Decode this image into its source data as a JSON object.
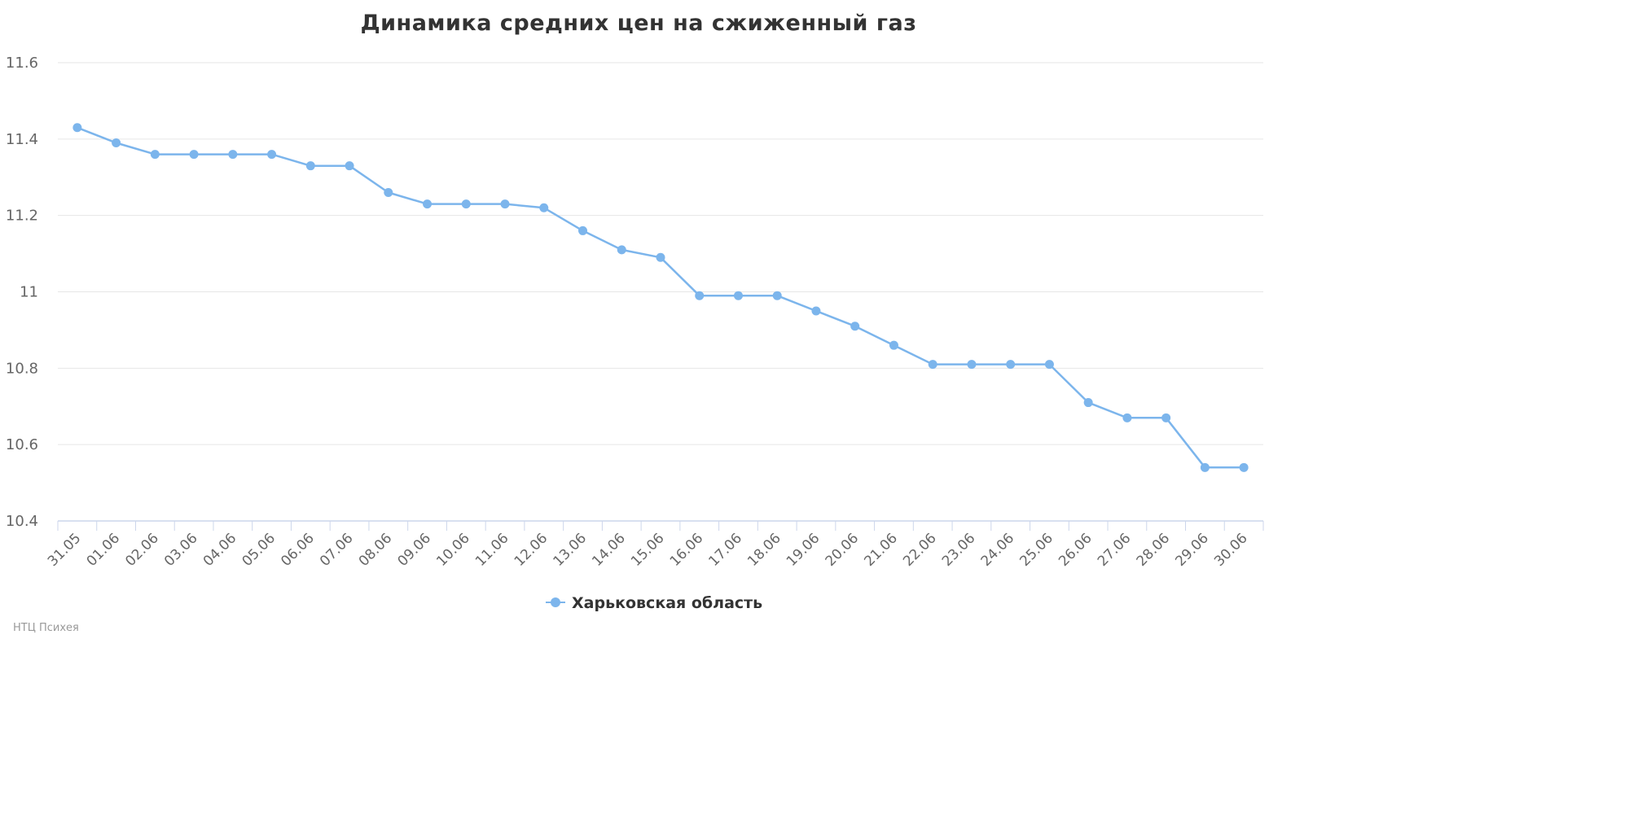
{
  "chart_data": {
    "type": "line",
    "title": "Динамика средних цен на сжиженный газ",
    "categories": [
      "31.05",
      "01.06",
      "02.06",
      "03.06",
      "04.06",
      "05.06",
      "06.06",
      "07.06",
      "08.06",
      "09.06",
      "10.06",
      "11.06",
      "12.06",
      "13.06",
      "14.06",
      "15.06",
      "16.06",
      "17.06",
      "18.06",
      "19.06",
      "20.06",
      "21.06",
      "22.06",
      "23.06",
      "24.06",
      "25.06",
      "26.06",
      "27.06",
      "28.06",
      "29.06",
      "30.06"
    ],
    "series": [
      {
        "name": "Харьковская область",
        "color": "#7cb5ec",
        "values": [
          11.43,
          11.39,
          11.36,
          11.36,
          11.36,
          11.36,
          11.33,
          11.33,
          11.26,
          11.23,
          11.23,
          11.23,
          11.22,
          11.16,
          11.11,
          11.09,
          10.99,
          10.99,
          10.99,
          10.95,
          10.91,
          10.86,
          10.81,
          10.81,
          10.81,
          10.81,
          10.71,
          10.67,
          10.67,
          10.54,
          10.54
        ]
      }
    ],
    "yticks": [
      "10.4",
      "10.6",
      "10.8",
      "11",
      "11.2",
      "11.4",
      "11.6"
    ],
    "ylim": [
      10.4,
      11.6
    ],
    "grid": true,
    "legend_position": "bottom-center"
  },
  "credit": "НТЦ Психея"
}
